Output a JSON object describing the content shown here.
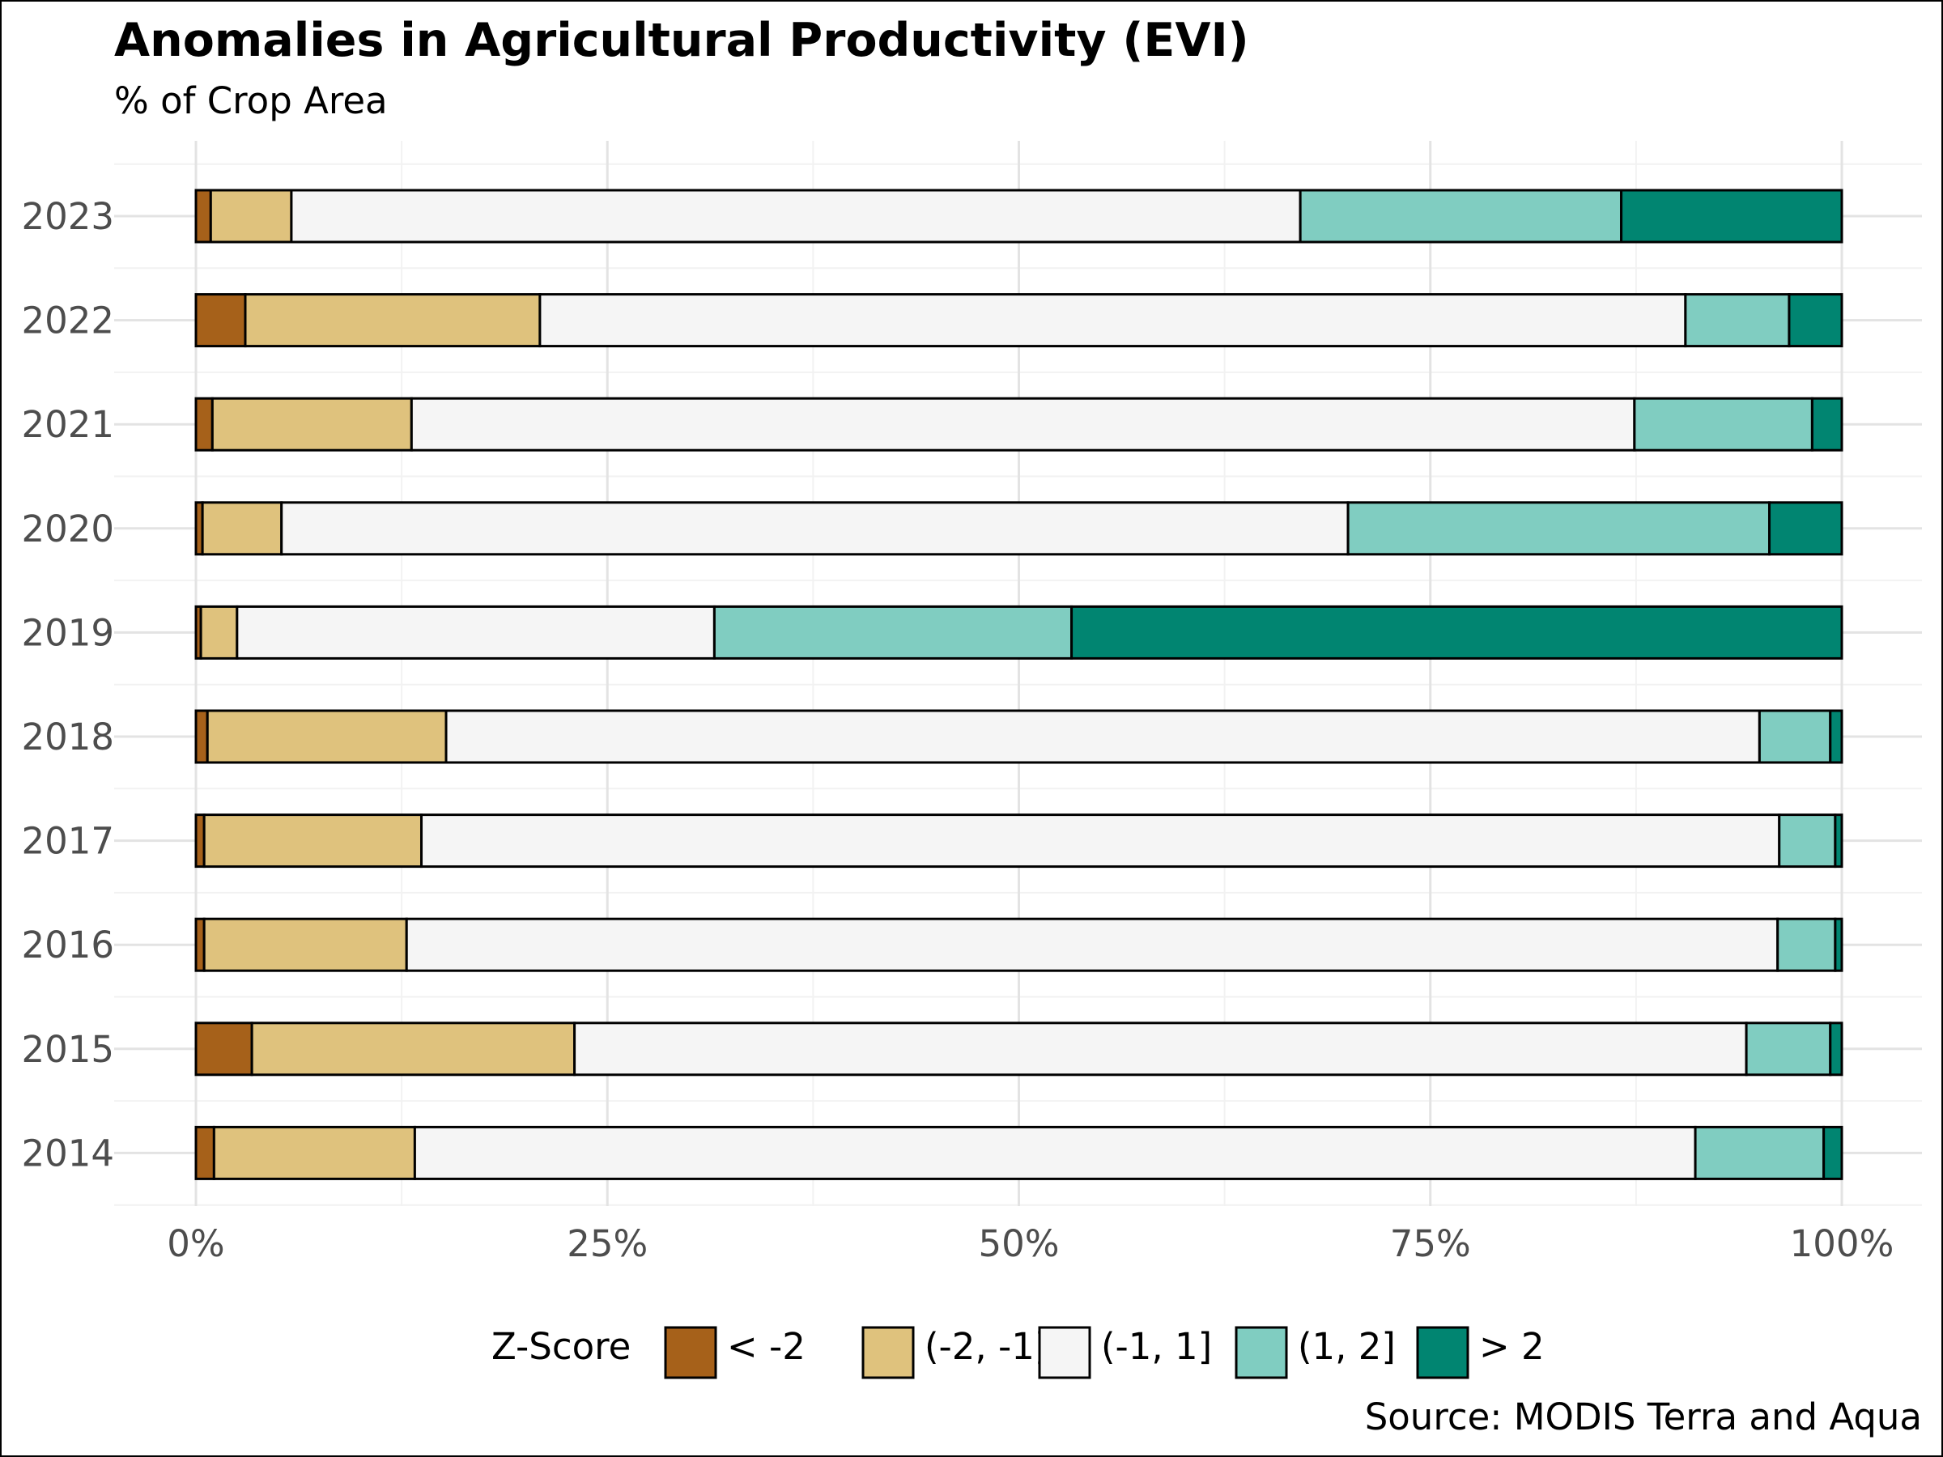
{
  "chart_data": {
    "type": "bar",
    "orientation": "horizontal",
    "stacked": true,
    "title": "Anomalies in Agricultural Productivity (EVI)",
    "subtitle": "% of Crop Area",
    "caption": "Source: MODIS Terra and Aqua",
    "xlabel": "",
    "ylabel": "",
    "xlim": [
      0,
      100
    ],
    "x_ticks": [
      "0%",
      "25%",
      "50%",
      "75%",
      "100%"
    ],
    "x_tick_values": [
      0,
      25,
      50,
      75,
      100
    ],
    "grid": true,
    "legend_title": "Z-Score",
    "legend_position": "bottom",
    "categories": [
      "2023",
      "2022",
      "2021",
      "2020",
      "2019",
      "2018",
      "2017",
      "2016",
      "2015",
      "2014"
    ],
    "series": [
      {
        "name": "< -2",
        "color": "#a6611a",
        "values": [
          0.9,
          3.0,
          1.0,
          0.4,
          0.3,
          0.7,
          0.5,
          0.5,
          3.4,
          1.1
        ]
      },
      {
        "name": "(-2, -1]",
        "color": "#dfc27d",
        "values": [
          4.9,
          17.9,
          12.1,
          4.8,
          2.2,
          14.5,
          13.2,
          12.3,
          19.6,
          12.2
        ]
      },
      {
        "name": "(-1, 1]",
        "color": "#f5f5f5",
        "values": [
          61.3,
          69.6,
          74.3,
          64.8,
          29.0,
          79.8,
          82.5,
          83.3,
          71.2,
          77.8
        ]
      },
      {
        "name": "(1, 2]",
        "color": "#80cdc1",
        "values": [
          19.5,
          6.3,
          10.8,
          25.6,
          21.7,
          4.3,
          3.4,
          3.5,
          5.1,
          7.8
        ]
      },
      {
        "name": "> 2",
        "color": "#018571",
        "values": [
          13.4,
          3.2,
          1.8,
          4.4,
          46.8,
          0.7,
          0.4,
          0.4,
          0.7,
          1.1
        ]
      }
    ]
  }
}
